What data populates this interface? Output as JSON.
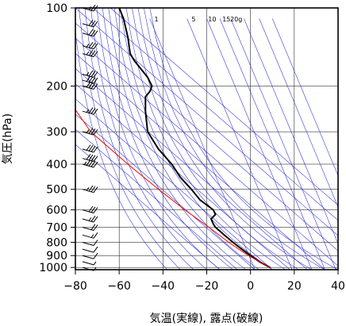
{
  "chart_data": {
    "type": "line",
    "subtype": "emagram (log-p skew-T style thermodynamic diagram)",
    "title": "",
    "xlabel": "気温(実線), 露点(破線)",
    "ylabel": "気圧(hPa)",
    "xlim": [
      -80,
      40
    ],
    "ylim": [
      1020,
      100
    ],
    "y_scale": "log",
    "x_ticks": [
      "−80",
      "−60",
      "−40",
      "−20",
      "0",
      "20",
      "40"
    ],
    "x_tick_values": [
      -80,
      -60,
      -40,
      -20,
      0,
      20,
      40
    ],
    "y_ticks": [
      "100",
      "200",
      "300",
      "400",
      "500",
      "600",
      "700",
      "800",
      "900",
      "1000"
    ],
    "y_tick_values": [
      100,
      200,
      300,
      400,
      500,
      600,
      700,
      800,
      900,
      1000
    ],
    "mixing_ratio_labels": [
      "1",
      "5",
      "10",
      "15",
      "20g"
    ],
    "grid": true,
    "series": [
      {
        "kind": "temperature",
        "color": "#000000",
        "points": [
          {
            "p": 1000,
            "t": 9
          },
          {
            "p": 950,
            "t": 4
          },
          {
            "p": 900,
            "t": 0
          },
          {
            "p": 850,
            "t": -4
          },
          {
            "p": 800,
            "t": -8
          },
          {
            "p": 750,
            "t": -12
          },
          {
            "p": 700,
            "t": -16
          },
          {
            "p": 680,
            "t": -17
          },
          {
            "p": 650,
            "t": -18
          },
          {
            "p": 625,
            "t": -16
          },
          {
            "p": 600,
            "t": -17
          },
          {
            "p": 550,
            "t": -23
          },
          {
            "p": 500,
            "t": -27
          },
          {
            "p": 450,
            "t": -32
          },
          {
            "p": 400,
            "t": -36
          },
          {
            "p": 350,
            "t": -42
          },
          {
            "p": 300,
            "t": -47
          },
          {
            "p": 250,
            "t": -48
          },
          {
            "p": 220,
            "t": -48
          },
          {
            "p": 210,
            "t": -46
          },
          {
            "p": 200,
            "t": -45
          },
          {
            "p": 185,
            "t": -47
          },
          {
            "p": 160,
            "t": -53
          },
          {
            "p": 150,
            "t": -55
          },
          {
            "p": 130,
            "t": -56
          },
          {
            "p": 110,
            "t": -58
          },
          {
            "p": 100,
            "t": -60
          }
        ]
      },
      {
        "kind": "parcel",
        "color": "#ff0000",
        "points": [
          {
            "p": 1000,
            "t": 9
          },
          {
            "p": 900,
            "t": -1
          },
          {
            "p": 800,
            "t": -10
          },
          {
            "p": 700,
            "t": -19
          },
          {
            "p": 600,
            "t": -30
          },
          {
            "p": 500,
            "t": -42
          },
          {
            "p": 400,
            "t": -56
          },
          {
            "p": 300,
            "t": -73
          },
          {
            "p": 240,
            "t": -81
          }
        ]
      }
    ],
    "wind_barbs": [
      {
        "p": 1000,
        "speed_kt": 5
      },
      {
        "p": 950,
        "speed_kt": 5
      },
      {
        "p": 900,
        "speed_kt": 10
      },
      {
        "p": 850,
        "speed_kt": 10
      },
      {
        "p": 800,
        "speed_kt": 10
      },
      {
        "p": 750,
        "speed_kt": 15
      },
      {
        "p": 700,
        "speed_kt": 20
      },
      {
        "p": 650,
        "speed_kt": 25
      },
      {
        "p": 600,
        "speed_kt": 30
      },
      {
        "p": 500,
        "speed_kt": 35
      },
      {
        "p": 400,
        "speed_kt": 45
      },
      {
        "p": 380,
        "speed_kt": 40
      },
      {
        "p": 350,
        "speed_kt": 40
      },
      {
        "p": 300,
        "speed_kt": 35
      },
      {
        "p": 250,
        "speed_kt": 35
      },
      {
        "p": 200,
        "speed_kt": 40
      },
      {
        "p": 190,
        "speed_kt": 40
      },
      {
        "p": 180,
        "speed_kt": 35
      },
      {
        "p": 150,
        "speed_kt": 35
      },
      {
        "p": 140,
        "speed_kt": 35
      },
      {
        "p": 125,
        "speed_kt": 30
      },
      {
        "p": 115,
        "speed_kt": 30
      },
      {
        "p": 100,
        "speed_kt": 25
      }
    ]
  }
}
